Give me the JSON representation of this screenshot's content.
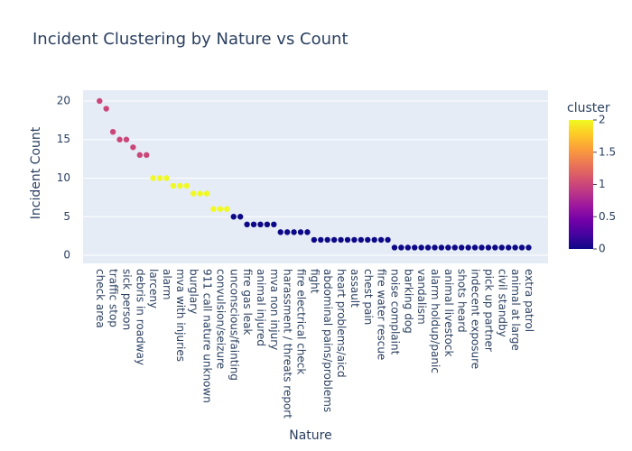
{
  "chart_data": {
    "type": "scatter",
    "title": "Incident Clustering by Nature vs Count",
    "x_label": "Nature",
    "y_label": "Incident Count",
    "categories": [
      "check area",
      null,
      "traffic stop",
      null,
      "sick person",
      null,
      "debris in roadway",
      null,
      "larceny",
      null,
      "alarm",
      null,
      "mva with injuries",
      null,
      "burglary",
      null,
      "911 call nature unknown",
      null,
      "convulsion/seizure",
      null,
      "unconscious/fainting",
      null,
      "fire gas leak",
      null,
      "animal injured",
      null,
      "mva non injury",
      null,
      "harassment / threats report",
      null,
      "fire electrical check",
      null,
      "fight",
      null,
      "abdominal pains/problems",
      null,
      "heart problems/aicd",
      null,
      "assault",
      null,
      "chest pain",
      null,
      "fire water rescue",
      null,
      "noise complaint",
      null,
      "barking dog",
      null,
      "vandalism",
      null,
      "alarm holdup/panic",
      null,
      "animal livestock",
      null,
      "shots heard",
      null,
      "indecent exposure",
      null,
      "pick up partner",
      null,
      "civil standby",
      null,
      "animal at large",
      null,
      "extra patrol"
    ],
    "values": [
      20,
      19,
      16,
      15,
      15,
      14,
      13,
      13,
      10,
      10,
      10,
      9,
      9,
      9,
      8,
      8,
      8,
      6,
      6,
      6,
      5,
      5,
      4,
      4,
      4,
      4,
      4,
      3,
      3,
      3,
      3,
      3,
      2,
      2,
      2,
      2,
      2,
      2,
      2,
      2,
      2,
      2,
      2,
      2,
      1,
      1,
      1,
      1,
      1,
      1,
      1,
      1,
      1,
      1,
      1,
      1,
      1,
      1,
      1,
      1,
      1,
      1,
      1,
      1,
      1
    ],
    "cluster": [
      1,
      1,
      1,
      1,
      1,
      1,
      1,
      1,
      2,
      2,
      2,
      2,
      2,
      2,
      2,
      2,
      2,
      2,
      2,
      2,
      0,
      0,
      0,
      0,
      0,
      0,
      0,
      0,
      0,
      0,
      0,
      0,
      0,
      0,
      0,
      0,
      0,
      0,
      0,
      0,
      0,
      0,
      0,
      0,
      0,
      0,
      0,
      0,
      0,
      0,
      0,
      0,
      0,
      0,
      0,
      0,
      0,
      0,
      0,
      0,
      0,
      0,
      0,
      0,
      0
    ],
    "ylim": [
      -1.05,
      21.4
    ],
    "yticks": [
      0,
      5,
      10,
      15,
      20
    ],
    "grid": true,
    "colorbar": {
      "title": "cluster",
      "lim": [
        0,
        2
      ],
      "ticks": [
        0,
        0.5,
        1,
        1.5,
        2
      ],
      "colorscale": [
        "#0d0887",
        "#46039f",
        "#7201a8",
        "#9c179e",
        "#bd3786",
        "#d8576b",
        "#ed7953",
        "#fb9f3a",
        "#fdca26",
        "#f0f921"
      ]
    }
  }
}
